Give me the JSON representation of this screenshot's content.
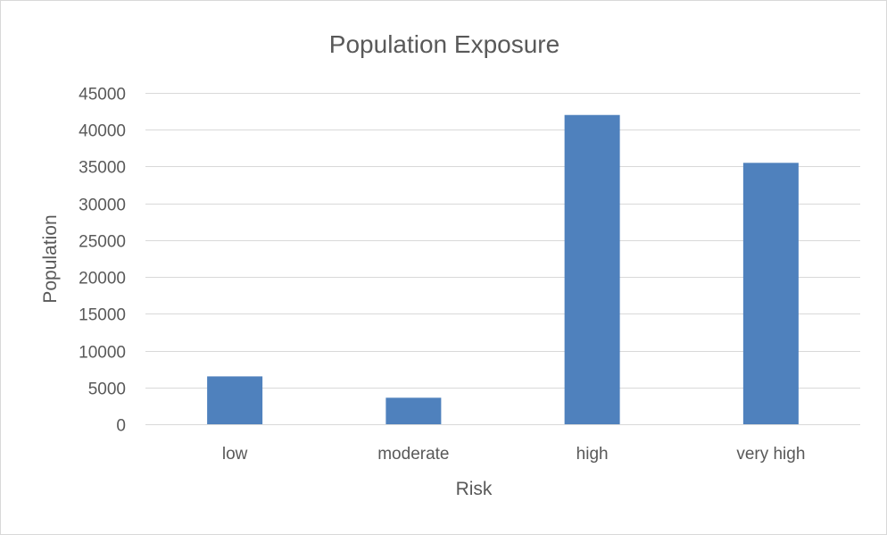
{
  "chart_data": {
    "type": "bar",
    "title": "Population Exposure",
    "xlabel": "Risk",
    "ylabel": "Population",
    "categories": [
      "low",
      "moderate",
      "high",
      "very high"
    ],
    "values": [
      6500,
      3600,
      42000,
      35500
    ],
    "ylim": [
      0,
      45000
    ],
    "yticks": [
      "0",
      "5000",
      "10000",
      "15000",
      "20000",
      "25000",
      "30000",
      "35000",
      "40000",
      "45000"
    ],
    "grid": true,
    "legend": "none",
    "bar_color": "#4f81bd"
  }
}
